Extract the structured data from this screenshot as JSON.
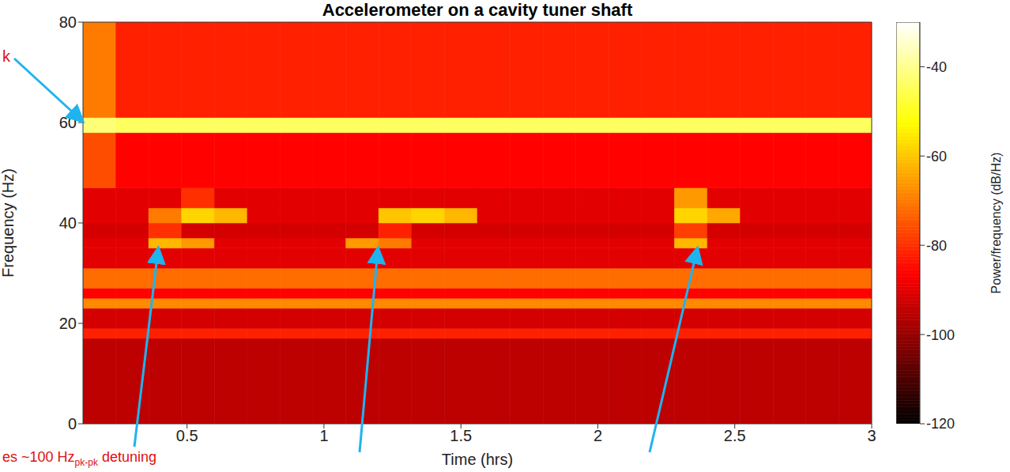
{
  "chart_data": {
    "type": "heatmap",
    "title": "Accelerometer on a cavity tuner shaft",
    "x_label": "Time (hrs)",
    "y_label": "Frequency (Hz)",
    "xlim": [
      0.12,
      3
    ],
    "xticks": [
      0.5,
      1,
      1.5,
      2,
      2.5,
      3
    ],
    "ylim": [
      0,
      80
    ],
    "yticks": [
      0,
      20,
      40,
      60,
      80
    ],
    "color": "hot",
    "x_edges": [
      0.12,
      0.24,
      0.36,
      0.48,
      0.6,
      0.72,
      0.84,
      0.96,
      1.08,
      1.2,
      1.32,
      1.44,
      1.56,
      1.68,
      1.8,
      1.92,
      2.04,
      2.16,
      2.28,
      2.4,
      2.52,
      2.64,
      2.76,
      2.88,
      3.0
    ],
    "y_edges": [
      0,
      17,
      19,
      23,
      25,
      27,
      31,
      35,
      37,
      40,
      43,
      47,
      58,
      61,
      80
    ],
    "cells": [
      [
        -95,
        -95,
        -95,
        -95,
        -95,
        -95,
        -95,
        -95,
        -95,
        -95,
        -95,
        -95,
        -95,
        -95,
        -95,
        -95,
        -95,
        -95,
        -95,
        -95,
        -95,
        -95,
        -95,
        -95
      ],
      [
        -82,
        -82,
        -82,
        -82,
        -82,
        -82,
        -82,
        -82,
        -82,
        -82,
        -82,
        -82,
        -82,
        -82,
        -82,
        -82,
        -82,
        -82,
        -82,
        -82,
        -82,
        -82,
        -82,
        -82
      ],
      [
        -92,
        -92,
        -92,
        -92,
        -92,
        -92,
        -92,
        -92,
        -92,
        -92,
        -92,
        -92,
        -92,
        -92,
        -92,
        -92,
        -92,
        -92,
        -92,
        -92,
        -92,
        -92,
        -92,
        -92
      ],
      [
        -68,
        -68,
        -68,
        -68,
        -68,
        -68,
        -68,
        -68,
        -68,
        -68,
        -68,
        -68,
        -68,
        -68,
        -68,
        -68,
        -68,
        -68,
        -68,
        -68,
        -68,
        -68,
        -68,
        -68
      ],
      [
        -86,
        -86,
        -86,
        -86,
        -86,
        -86,
        -86,
        -86,
        -86,
        -86,
        -86,
        -86,
        -86,
        -86,
        -86,
        -86,
        -86,
        -86,
        -86,
        -86,
        -86,
        -86,
        -86,
        -86
      ],
      [
        -72,
        -72,
        -72,
        -72,
        -72,
        -72,
        -72,
        -72,
        -72,
        -72,
        -72,
        -72,
        -72,
        -72,
        -72,
        -72,
        -72,
        -72,
        -72,
        -72,
        -72,
        -72,
        -72,
        -72
      ],
      [
        -90,
        -90,
        -90,
        -90,
        -90,
        -90,
        -90,
        -90,
        -90,
        -90,
        -90,
        -90,
        -90,
        -90,
        -90,
        -90,
        -90,
        -90,
        -90,
        -90,
        -90,
        -90,
        -90,
        -90
      ],
      [
        -90,
        -90,
        -62,
        -66,
        -90,
        -90,
        -90,
        -90,
        -66,
        -70,
        -90,
        -90,
        -90,
        -90,
        -90,
        -90,
        -90,
        -90,
        -62,
        -90,
        -90,
        -90,
        -90,
        -90
      ],
      [
        -92,
        -92,
        -80,
        -92,
        -92,
        -92,
        -92,
        -92,
        -92,
        -82,
        -92,
        -92,
        -92,
        -92,
        -92,
        -92,
        -92,
        -92,
        -78,
        -92,
        -92,
        -92,
        -92,
        -92
      ],
      [
        -90,
        -90,
        -70,
        -58,
        -62,
        -90,
        -90,
        -90,
        -90,
        -60,
        -58,
        -62,
        -90,
        -90,
        -90,
        -90,
        -90,
        -90,
        -58,
        -64,
        -90,
        -90,
        -90,
        -90
      ],
      [
        -90,
        -90,
        -90,
        -80,
        -90,
        -90,
        -90,
        -90,
        -90,
        -90,
        -90,
        -90,
        -90,
        -90,
        -90,
        -90,
        -90,
        -90,
        -66,
        -90,
        -90,
        -90,
        -90,
        -90
      ],
      [
        -76,
        -86,
        -86,
        -86,
        -86,
        -86,
        -86,
        -86,
        -86,
        -86,
        -86,
        -86,
        -86,
        -86,
        -86,
        -86,
        -86,
        -86,
        -86,
        -86,
        -86,
        -86,
        -86,
        -86
      ],
      [
        -42,
        -44,
        -44,
        -44,
        -44,
        -44,
        -44,
        -44,
        -44,
        -44,
        -44,
        -44,
        -44,
        -44,
        -44,
        -44,
        -44,
        -44,
        -44,
        -44,
        -44,
        -44,
        -44,
        -44
      ],
      [
        -70,
        -82,
        -82,
        -82,
        -82,
        -82,
        -82,
        -82,
        -82,
        -82,
        -82,
        -82,
        -82,
        -82,
        -82,
        -82,
        -82,
        -82,
        -82,
        -82,
        -82,
        -82,
        -82,
        -82
      ]
    ],
    "color_label": "Power/frequency (dB/Hz)",
    "color_range": [
      -120,
      -30
    ],
    "color_ticks": [
      -120,
      -100,
      -80,
      -60,
      -40
    ],
    "annotations": [
      {
        "text": "k"
      },
      {
        "text": "es ~100 Hz",
        "subscript": "pk-pk",
        "suffix": " detuning"
      }
    ]
  }
}
